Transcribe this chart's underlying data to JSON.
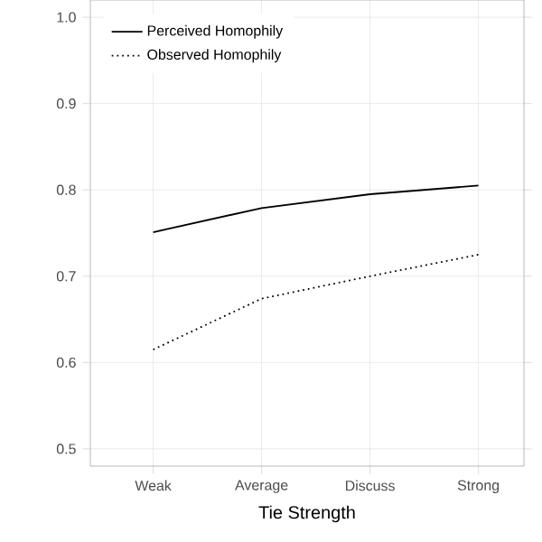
{
  "chart_data": {
    "type": "line",
    "xlabel": "Tie Strength",
    "categories": [
      "Weak",
      "Average",
      "Discuss",
      "Strong"
    ],
    "series": [
      {
        "name": "Perceived Homophily",
        "color": "#000000",
        "line_style": "solid",
        "values": [
          0.751,
          0.779,
          0.795,
          0.805
        ]
      },
      {
        "name": "Observed Homophily",
        "color": "#000000",
        "line_style": "dotted",
        "values": [
          0.615,
          0.674,
          0.7,
          0.725
        ]
      }
    ],
    "ylim": [
      0.48,
      1.02
    ],
    "yticks": [
      0.5,
      0.6,
      0.7,
      0.8,
      0.9,
      {
        "value": 1.0,
        "label": "1.0"
      }
    ],
    "grid": true,
    "legend": "top left",
    "marker": "none"
  }
}
